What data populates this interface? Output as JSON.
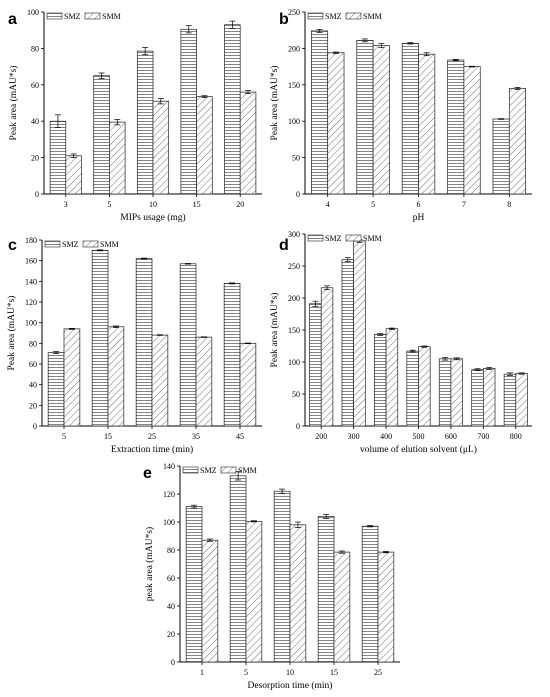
{
  "figure": {
    "colors": {
      "bar_stroke": "#222222",
      "axis": "#000000",
      "hatch": "#333333"
    },
    "series_patterns": {
      "SMZ": "horizontal-lines",
      "SMM": "diagonal-lines"
    }
  },
  "chart_data": [
    {
      "panel": "a",
      "type": "bar",
      "categories": [
        "3",
        "5",
        "10",
        "15",
        "20"
      ],
      "series": [
        {
          "name": "SMZ",
          "values": [
            40,
            65,
            78.5,
            90.5,
            93
          ],
          "errors": [
            3.5,
            1.5,
            2,
            2,
            2
          ]
        },
        {
          "name": "SMM",
          "values": [
            21,
            39.5,
            51,
            53.5,
            56
          ],
          "errors": [
            1,
            1.5,
            1.5,
            0.5,
            0.8
          ]
        }
      ],
      "xlabel": "MIPs usage (mg)",
      "ylabel": "Peak area (mAU*s)",
      "ylim": [
        0,
        100
      ],
      "yticks": [
        0,
        20,
        40,
        60,
        80,
        100
      ],
      "legend": "top-left",
      "grid": false
    },
    {
      "panel": "b",
      "type": "bar",
      "categories": [
        "4",
        "5",
        "6",
        "7",
        "8"
      ],
      "series": [
        {
          "name": "SMZ",
          "values": [
            224,
            211,
            207,
            184,
            103
          ],
          "errors": [
            2,
            2,
            1,
            1,
            0.5
          ]
        },
        {
          "name": "SMM",
          "values": [
            194,
            204,
            192,
            175,
            145
          ],
          "errors": [
            1,
            3,
            2,
            0.5,
            1.5
          ]
        }
      ],
      "xlabel": "pH",
      "ylabel": "Peak area (mAU*s)",
      "ylim": [
        0,
        250
      ],
      "yticks": [
        0,
        50,
        100,
        150,
        200,
        250
      ],
      "legend": "top-left",
      "grid": false
    },
    {
      "panel": "c",
      "type": "bar",
      "categories": [
        "5",
        "15",
        "25",
        "35",
        "45"
      ],
      "series": [
        {
          "name": "SMZ",
          "values": [
            71,
            170,
            162,
            157,
            138
          ],
          "errors": [
            1,
            0.5,
            0.5,
            0.3,
            0.5
          ]
        },
        {
          "name": "SMM",
          "values": [
            94,
            96,
            88,
            86,
            80
          ],
          "errors": [
            0.5,
            0.8,
            0.3,
            0.3,
            0.3
          ]
        }
      ],
      "xlabel": "Extraction time (min)",
      "ylabel": "Peak area (mAU*s)",
      "ylim": [
        0,
        180
      ],
      "yticks": [
        0,
        20,
        40,
        60,
        80,
        100,
        120,
        140,
        160,
        180
      ],
      "legend": "top-left",
      "grid": false
    },
    {
      "panel": "d",
      "type": "bar",
      "categories": [
        "200",
        "300",
        "400",
        "500",
        "600",
        "700",
        "800"
      ],
      "series": [
        {
          "name": "SMZ",
          "values": [
            191,
            260,
            143,
            117,
            105,
            88,
            81
          ],
          "errors": [
            4,
            3,
            1.5,
            1.5,
            2,
            1.5,
            2
          ]
        },
        {
          "name": "SMM",
          "values": [
            216,
            289,
            152,
            124,
            105,
            90,
            82
          ],
          "errors": [
            3,
            2,
            1,
            1,
            1.5,
            1.5,
            1
          ]
        }
      ],
      "xlabel": "volume of elution solvent (μL)",
      "ylabel": "Peak area (mAU*s)",
      "ylim": [
        0,
        300
      ],
      "yticks": [
        0,
        50,
        100,
        150,
        200,
        250,
        300
      ],
      "legend": "top-left",
      "grid": false
    },
    {
      "panel": "e",
      "type": "bar",
      "categories": [
        "1",
        "5",
        "10",
        "15",
        "25"
      ],
      "series": [
        {
          "name": "SMZ",
          "values": [
            111,
            133,
            122,
            104,
            97
          ],
          "errors": [
            1,
            3,
            1.5,
            1.5,
            0.5
          ]
        },
        {
          "name": "SMM",
          "values": [
            87,
            100.5,
            98,
            78.5,
            78.5
          ],
          "errors": [
            0.8,
            0.4,
            2,
            0.8,
            0.5
          ]
        }
      ],
      "xlabel": "Desorption time (min)",
      "ylabel": "peak area (mAU*s)",
      "ylim": [
        0,
        140
      ],
      "yticks": [
        0,
        20,
        40,
        60,
        80,
        100,
        120,
        140
      ],
      "legend": "top-left",
      "grid": false
    }
  ]
}
